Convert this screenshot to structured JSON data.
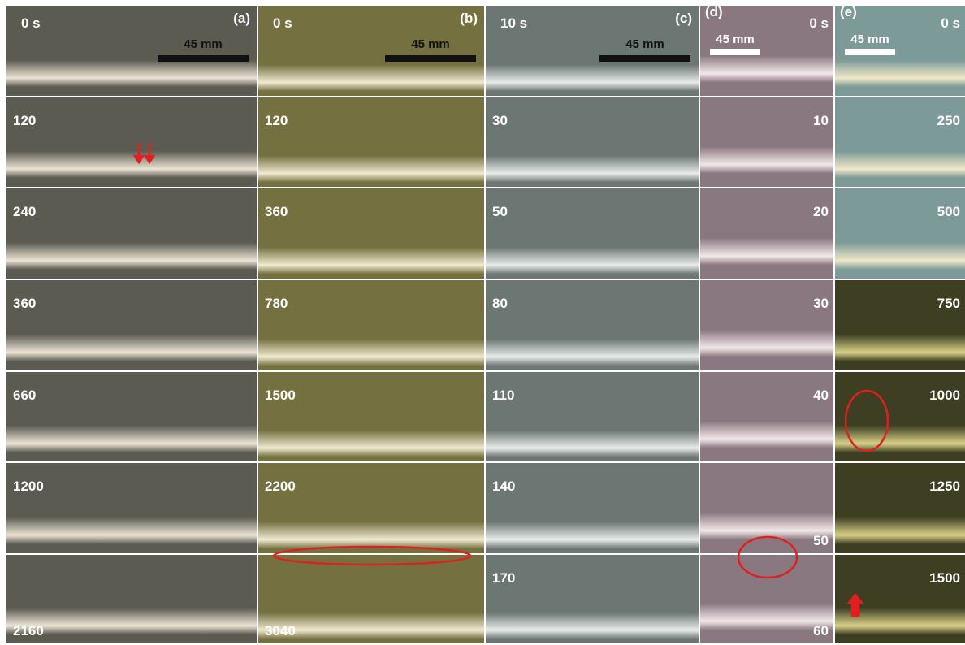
{
  "panels": [
    {
      "label": "(a)",
      "scale_bar": "45 mm",
      "frames": [
        "0 s",
        "120",
        "240",
        "360",
        "660",
        "1200",
        "2160"
      ]
    },
    {
      "label": "(b)",
      "scale_bar": "45 mm",
      "frames": [
        "0 s",
        "120",
        "360",
        "780",
        "1500",
        "2200",
        "3040"
      ]
    },
    {
      "label": "(c)",
      "scale_bar": "45 mm",
      "frames": [
        "10 s",
        "30",
        "50",
        "80",
        "110",
        "140",
        "170"
      ]
    },
    {
      "label": "(d)",
      "scale_bar": "45 mm",
      "frames": [
        "0 s",
        "10",
        "20",
        "30",
        "40",
        "50",
        "60"
      ]
    },
    {
      "label": "(e)",
      "scale_bar": "45 mm",
      "frames": [
        "0 s",
        "250",
        "500",
        "750",
        "1000",
        "1250",
        "1500"
      ]
    }
  ]
}
